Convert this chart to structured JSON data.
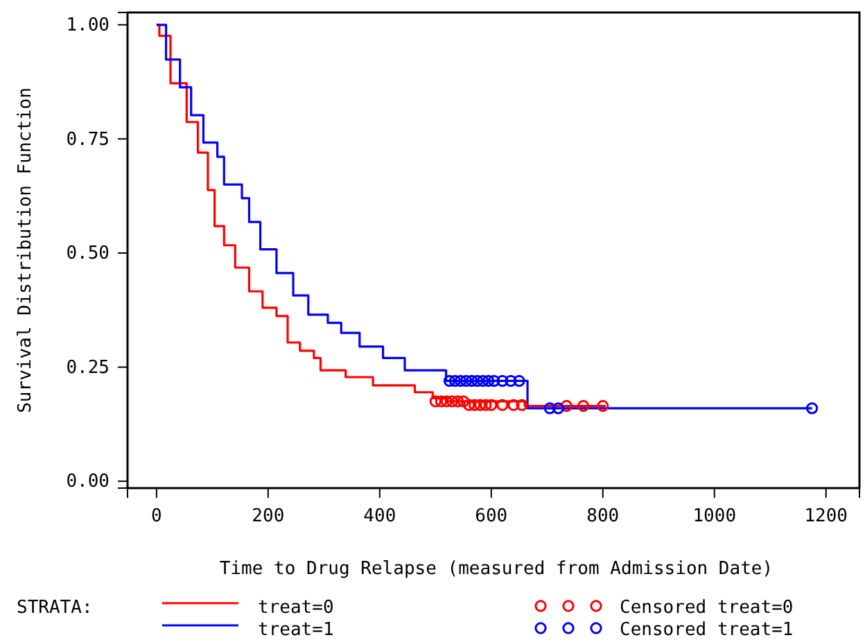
{
  "chart_data": {
    "type": "step",
    "xlabel": "Time to Drug Relapse (measured from Admission Date)",
    "ylabel": "Survival Distribution Function",
    "legend_title": "STRATA:",
    "legend": "bottom",
    "grid": false,
    "xlim": [
      -52,
      1260
    ],
    "ylim": [
      -0.015,
      1.027
    ],
    "xticks": [
      0,
      200,
      400,
      600,
      800,
      1000,
      1200
    ],
    "yticks": [
      {
        "value": 0,
        "label": "0.00"
      },
      {
        "value": 0.25,
        "label": "0.25"
      },
      {
        "value": 0.5,
        "label": "0.50"
      },
      {
        "value": 0.75,
        "label": "0.75"
      },
      {
        "value": 1,
        "label": "1.00"
      }
    ],
    "series": [
      {
        "name": "treat=0",
        "color": "#ff0000",
        "x": [
          0,
          5,
          25,
          54,
          74,
          92,
          104,
          121,
          141,
          166,
          190,
          215,
          235,
          257,
          282,
          294,
          339,
          388,
          463,
          495,
          520,
          660,
          805
        ],
        "values": [
          1,
          0.976,
          0.872,
          0.787,
          0.72,
          0.638,
          0.559,
          0.517,
          0.468,
          0.416,
          0.38,
          0.362,
          0.304,
          0.286,
          0.27,
          0.243,
          0.228,
          0.21,
          0.195,
          0.182,
          0.175,
          0.165,
          0.165
        ]
      },
      {
        "name": "treat=1",
        "color": "#0000ff",
        "x": [
          0,
          17,
          42,
          62,
          84,
          109,
          121,
          153,
          166,
          186,
          215,
          245,
          272,
          307,
          331,
          364,
          406,
          445,
          519,
          665,
          1175
        ],
        "values": [
          1,
          0.924,
          0.863,
          0.802,
          0.742,
          0.711,
          0.65,
          0.62,
          0.568,
          0.508,
          0.456,
          0.407,
          0.365,
          0.347,
          0.325,
          0.295,
          0.27,
          0.243,
          0.22,
          0.16,
          0.16
        ]
      },
      {
        "name": "Censored treat=0",
        "type": "scatter",
        "marker": "circle",
        "color": "#ff0000",
        "x": [
          500,
          510,
          520,
          530,
          540,
          550,
          560,
          570,
          580,
          590,
          600,
          620,
          640,
          655,
          735,
          765,
          800
        ],
        "values": [
          0.175,
          0.175,
          0.175,
          0.175,
          0.175,
          0.175,
          0.167,
          0.167,
          0.167,
          0.167,
          0.167,
          0.167,
          0.167,
          0.167,
          0.165,
          0.165,
          0.165
        ]
      },
      {
        "name": "Censored treat=1",
        "type": "scatter",
        "marker": "circle",
        "color": "#0000ff",
        "x": [
          525,
          535,
          545,
          555,
          565,
          575,
          585,
          595,
          605,
          620,
          635,
          650,
          705,
          720,
          1175
        ],
        "values": [
          0.22,
          0.22,
          0.22,
          0.22,
          0.22,
          0.22,
          0.22,
          0.22,
          0.22,
          0.22,
          0.22,
          0.22,
          0.16,
          0.16,
          0.16
        ]
      }
    ]
  }
}
